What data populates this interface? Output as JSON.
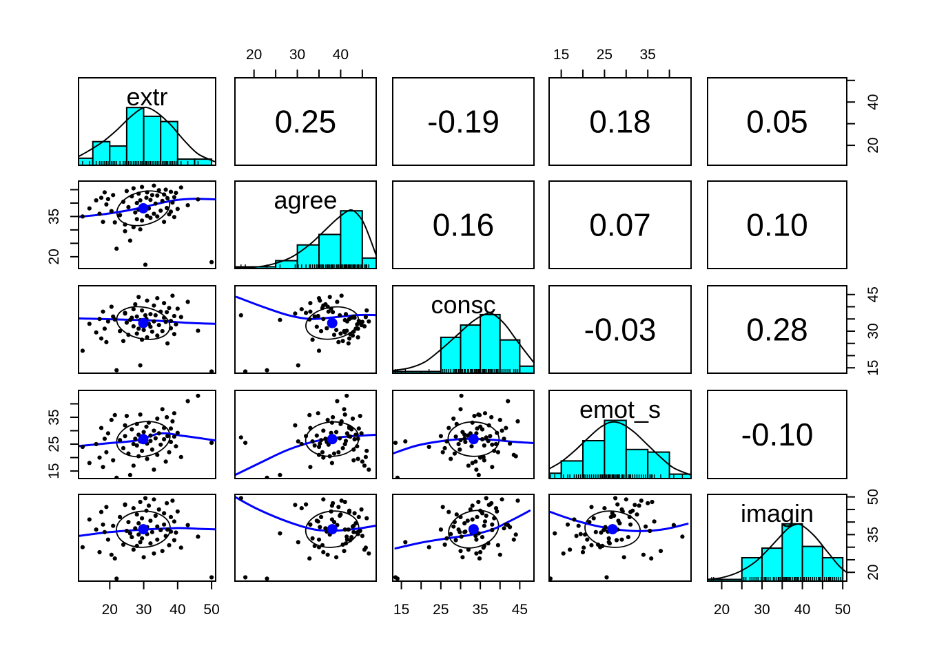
{
  "chart_data": {
    "type": "scatterplot-matrix",
    "title": "",
    "colors": {
      "hist_fill": "#00FFFF",
      "loess_line": "#0000FF",
      "center_dot": "#0000FF",
      "points": "#000000",
      "panel_border": "#000000",
      "density_line": "#000000",
      "ellipse": "#000000",
      "background": "#FFFFFF"
    },
    "variables": [
      {
        "name": "extr",
        "range": [
          10.8,
          51.2
        ],
        "x_ticks": [
          20,
          30,
          40,
          50
        ],
        "x_tick_labels": [
          "20",
          "30",
          "40",
          "50"
        ],
        "y_ticks": [
          20,
          30,
          40,
          50
        ],
        "y_tick_labels": [
          "20",
          "",
          "40",
          ""
        ],
        "hist_edges": [
          10,
          15,
          20,
          25,
          30,
          35,
          40,
          45,
          50
        ],
        "hist_heights": [
          0.08,
          0.27,
          0.22,
          0.66,
          0.56,
          0.5,
          0.07,
          0.07
        ],
        "density": [
          [
            10.8,
            0.1
          ],
          [
            14,
            0.17
          ],
          [
            18,
            0.27
          ],
          [
            22,
            0.4
          ],
          [
            26,
            0.55
          ],
          [
            29,
            0.64
          ],
          [
            31,
            0.66
          ],
          [
            34,
            0.6
          ],
          [
            38,
            0.46
          ],
          [
            42,
            0.28
          ],
          [
            46,
            0.13
          ],
          [
            51,
            0.04
          ]
        ]
      },
      {
        "name": "agree",
        "range": [
          15.6,
          48.2
        ],
        "x_ticks": [
          20,
          25,
          30,
          35,
          40,
          45
        ],
        "x_tick_labels": [
          "20",
          "",
          "30",
          "",
          "40",
          ""
        ],
        "y_ticks": [
          20,
          25,
          30,
          35,
          40,
          45
        ],
        "y_tick_labels": [
          "20",
          "",
          "",
          "35",
          "",
          ""
        ],
        "hist_edges": [
          15,
          20,
          25,
          30,
          35,
          40,
          45,
          50
        ],
        "hist_heights": [
          0.02,
          0.02,
          0.09,
          0.27,
          0.39,
          0.66,
          0.12
        ],
        "density": [
          [
            15.6,
            0.01
          ],
          [
            21,
            0.02
          ],
          [
            25,
            0.06
          ],
          [
            29,
            0.14
          ],
          [
            33,
            0.28
          ],
          [
            36,
            0.42
          ],
          [
            39,
            0.56
          ],
          [
            41.5,
            0.655
          ],
          [
            43,
            0.66
          ],
          [
            45,
            0.55
          ],
          [
            46.5,
            0.38
          ],
          [
            48.2,
            0.15
          ]
        ]
      },
      {
        "name": "consc",
        "range": [
          12.8,
          48.6
        ],
        "x_ticks": [
          15,
          20,
          25,
          30,
          35,
          40,
          45
        ],
        "x_tick_labels": [
          "15",
          "",
          "25",
          "",
          "35",
          "",
          "45"
        ],
        "y_ticks": [
          15,
          20,
          25,
          30,
          35,
          40,
          45
        ],
        "y_tick_labels": [
          "15",
          "",
          "",
          "30",
          "",
          "",
          "45"
        ],
        "hist_edges": [
          10,
          15,
          20,
          25,
          30,
          35,
          40,
          45,
          50
        ],
        "hist_heights": [
          0.02,
          0.02,
          0.02,
          0.41,
          0.55,
          0.67,
          0.38,
          0.08
        ],
        "density": [
          [
            12.8,
            0.03
          ],
          [
            17,
            0.06
          ],
          [
            21,
            0.13
          ],
          [
            25,
            0.27
          ],
          [
            29,
            0.43
          ],
          [
            33,
            0.59
          ],
          [
            36,
            0.67
          ],
          [
            38,
            0.68
          ],
          [
            41,
            0.57
          ],
          [
            44,
            0.39
          ],
          [
            46.5,
            0.24
          ],
          [
            48.6,
            0.12
          ]
        ]
      },
      {
        "name": "emot_s",
        "range": [
          12.2,
          45.0
        ],
        "x_ticks": [
          15,
          20,
          25,
          30,
          35,
          40
        ],
        "x_tick_labels": [
          "15",
          "",
          "25",
          "",
          "35",
          ""
        ],
        "y_ticks": [
          15,
          20,
          25,
          30,
          35,
          40
        ],
        "y_tick_labels": [
          "15",
          "",
          "25",
          "",
          "35",
          ""
        ],
        "hist_edges": [
          10,
          15,
          20,
          25,
          30,
          35,
          40,
          45
        ],
        "hist_heights": [
          0.06,
          0.2,
          0.43,
          0.66,
          0.33,
          0.3,
          0.05
        ],
        "density": [
          [
            12.2,
            0.11
          ],
          [
            15,
            0.19
          ],
          [
            18,
            0.31
          ],
          [
            21,
            0.45
          ],
          [
            24,
            0.58
          ],
          [
            26.5,
            0.64
          ],
          [
            29,
            0.62
          ],
          [
            32,
            0.52
          ],
          [
            35,
            0.38
          ],
          [
            38,
            0.24
          ],
          [
            41,
            0.12
          ],
          [
            45,
            0.04
          ]
        ]
      },
      {
        "name": "imagin",
        "range": [
          16.5,
          51.0
        ],
        "x_ticks": [
          20,
          25,
          30,
          35,
          40,
          45,
          50
        ],
        "x_tick_labels": [
          "20",
          "",
          "30",
          "",
          "40",
          "",
          "50"
        ],
        "y_ticks": [
          20,
          25,
          30,
          35,
          40,
          45,
          50
        ],
        "y_tick_labels": [
          "20",
          "",
          "",
          "35",
          "",
          "",
          "50"
        ],
        "hist_edges": [
          15,
          20,
          25,
          30,
          35,
          40,
          45,
          50
        ],
        "hist_heights": [
          0.02,
          0.02,
          0.27,
          0.38,
          0.66,
          0.4,
          0.27
        ],
        "density": [
          [
            16.5,
            0.02
          ],
          [
            20,
            0.04
          ],
          [
            24,
            0.1
          ],
          [
            28,
            0.21
          ],
          [
            31,
            0.34
          ],
          [
            34,
            0.49
          ],
          [
            36.5,
            0.61
          ],
          [
            38.5,
            0.655
          ],
          [
            40,
            0.64
          ],
          [
            43,
            0.52
          ],
          [
            46,
            0.35
          ],
          [
            49,
            0.18
          ],
          [
            51,
            0.1
          ]
        ]
      }
    ],
    "correlation_labels": [
      [
        "",
        "0.25",
        "-0.19",
        "0.18",
        "0.05"
      ],
      [
        "",
        "",
        "0.16",
        "0.07",
        "0.10"
      ],
      [
        "",
        "",
        "",
        "-0.03",
        "0.28"
      ],
      [
        "",
        "",
        "",
        "",
        "-0.10"
      ],
      [
        "",
        "",
        "",
        "",
        ""
      ]
    ],
    "loess": {
      "r2c1": [
        [
          11,
          34.9
        ],
        [
          18,
          35.8
        ],
        [
          25,
          37.2
        ],
        [
          30,
          38.5
        ],
        [
          35,
          40.0
        ],
        [
          40,
          41.2
        ],
        [
          45,
          41.6
        ],
        [
          51,
          41.4
        ]
      ],
      "r3c1": [
        [
          11,
          35.2
        ],
        [
          20,
          34.9
        ],
        [
          28,
          34.6
        ],
        [
          35,
          34.2
        ],
        [
          43,
          33.4
        ],
        [
          51,
          33.0
        ]
      ],
      "r4c1": [
        [
          11,
          24.3
        ],
        [
          20,
          25.4
        ],
        [
          28,
          26.4
        ],
        [
          35,
          29.0
        ],
        [
          42,
          28.0
        ],
        [
          51,
          26.4
        ]
      ],
      "r5c1": [
        [
          11,
          34.5
        ],
        [
          20,
          36.0
        ],
        [
          30,
          37.0
        ],
        [
          40,
          37.6
        ],
        [
          46,
          37.3
        ],
        [
          51,
          37.1
        ]
      ],
      "r3c2": [
        [
          16,
          44.0
        ],
        [
          22,
          40.0
        ],
        [
          28,
          36.5
        ],
        [
          33,
          35.0
        ],
        [
          38,
          35.6
        ],
        [
          44,
          36.6
        ],
        [
          48.2,
          36.6
        ]
      ],
      "r4c2": [
        [
          15.6,
          13.5
        ],
        [
          22,
          18.5
        ],
        [
          28,
          23.0
        ],
        [
          34,
          26.0
        ],
        [
          40,
          27.6
        ],
        [
          45,
          28.2
        ],
        [
          48.2,
          28.5
        ]
      ],
      "r5c2": [
        [
          15.6,
          50.0
        ],
        [
          21,
          45.0
        ],
        [
          28,
          40.0
        ],
        [
          34,
          37.0
        ],
        [
          39,
          36.6
        ],
        [
          44,
          37.4
        ],
        [
          48.2,
          38.6
        ]
      ],
      "r4c3": [
        [
          12.8,
          21.5
        ],
        [
          19,
          24.5
        ],
        [
          26,
          26.3
        ],
        [
          32,
          27.0
        ],
        [
          38,
          26.6
        ],
        [
          44,
          25.8
        ],
        [
          48.6,
          25.4
        ]
      ],
      "r5c3": [
        [
          13.5,
          29.5
        ],
        [
          20,
          31.8
        ],
        [
          27,
          33.6
        ],
        [
          33,
          35.0
        ],
        [
          38,
          37.0
        ],
        [
          42,
          40.0
        ],
        [
          45.5,
          42.8
        ],
        [
          47.5,
          44.5
        ]
      ],
      "r5c4": [
        [
          12.5,
          44.0
        ],
        [
          17,
          41.3
        ],
        [
          23,
          38.5
        ],
        [
          29,
          36.8
        ],
        [
          34,
          36.4
        ],
        [
          39,
          37.2
        ],
        [
          44.2,
          39.3
        ]
      ]
    },
    "observations": [
      [
        50,
        18,
        13.5,
        25.5,
        18
      ],
      [
        30.5,
        17,
        36.5,
        27.5,
        49.5
      ],
      [
        22,
        23,
        14,
        12.5,
        17.5
      ],
      [
        29,
        30.2,
        16,
        26,
        32
      ],
      [
        26,
        26,
        34.6,
        13.5,
        35.5
      ],
      [
        12,
        35,
        22,
        24,
        30
      ],
      [
        14,
        38,
        33,
        18,
        41
      ],
      [
        16,
        41,
        29.5,
        25,
        37
      ],
      [
        17,
        36,
        35,
        20,
        28
      ],
      [
        17.5,
        42,
        27,
        31,
        44
      ],
      [
        18,
        33,
        38,
        16.5,
        39
      ],
      [
        18.5,
        44,
        31,
        27,
        36
      ],
      [
        19,
        39.5,
        25.5,
        22,
        46
      ],
      [
        19.5,
        41.5,
        34,
        29,
        33
      ],
      [
        20.5,
        37,
        40,
        34,
        27
      ],
      [
        21,
        43,
        36,
        19,
        38.5
      ],
      [
        23,
        35.5,
        30,
        26.5,
        42
      ],
      [
        24,
        40.5,
        26,
        23.5,
        31
      ],
      [
        24.5,
        32,
        37.5,
        28,
        47
      ],
      [
        25,
        44.5,
        33.5,
        35.5,
        36.5
      ],
      [
        25.5,
        38.5,
        28.5,
        21.5,
        40
      ],
      [
        26.5,
        42.5,
        35.5,
        30.5,
        34
      ],
      [
        27,
        31,
        39,
        25,
        45.5
      ],
      [
        27,
        45.5,
        32,
        17,
        29
      ],
      [
        27.5,
        36.5,
        41,
        27,
        37.5
      ],
      [
        28,
        40,
        29,
        32.5,
        43
      ],
      [
        28,
        34,
        36,
        24.5,
        30.5
      ],
      [
        28.5,
        43.5,
        31,
        28.5,
        39.5
      ],
      [
        28.5,
        37.5,
        44,
        20.5,
        35
      ],
      [
        29,
        41,
        34.5,
        36,
        48
      ],
      [
        29.5,
        33.5,
        26.5,
        26,
        33.5
      ],
      [
        29.5,
        46,
        38.5,
        22.5,
        41.5
      ],
      [
        30,
        39,
        30.5,
        29.5,
        26
      ],
      [
        30.8,
        42,
        35,
        31.5,
        44.5
      ],
      [
        31,
        35.2,
        42.5,
        25.2,
        38
      ],
      [
        31,
        44,
        27.5,
        19.5,
        35.2
      ],
      [
        31.5,
        38,
        33,
        33,
        46.5
      ],
      [
        32,
        41.2,
        37,
        26.2,
        31.5
      ],
      [
        32,
        34.5,
        31.8,
        28.2,
        40.5
      ],
      [
        32.5,
        43,
        29.8,
        23,
        36
      ],
      [
        33,
        36,
        40.5,
        30,
        49
      ],
      [
        33,
        46.5,
        34,
        15.5,
        27.5
      ],
      [
        33.5,
        39.8,
        36.5,
        27.2,
        42.5
      ],
      [
        34,
        42.8,
        28.2,
        34.5,
        38.2
      ],
      [
        34,
        35,
        43.5,
        21,
        33
      ],
      [
        34.5,
        44.8,
        32.5,
        29,
        45
      ],
      [
        35,
        37.2,
        38,
        24.8,
        36.8
      ],
      [
        35.5,
        40.8,
        30,
        38,
        28.5
      ],
      [
        36,
        43.2,
        35.5,
        26.8,
        43.5
      ],
      [
        36,
        33,
        41.5,
        31,
        39
      ],
      [
        36.5,
        45,
        33.8,
        18.5,
        34.5
      ],
      [
        36.8,
        38.2,
        37.8,
        35,
        47.5
      ],
      [
        37,
        41.8,
        25,
        28,
        37
      ],
      [
        37.5,
        35.8,
        39.5,
        22,
        30.8
      ],
      [
        38,
        44.2,
        34.2,
        30.8,
        42
      ],
      [
        38,
        36.8,
        31.2,
        25.8,
        36.2
      ],
      [
        38.5,
        40.2,
        44.5,
        33.5,
        48.5
      ],
      [
        39,
        42.2,
        28.8,
        27.8,
        32.8
      ],
      [
        39,
        34.8,
        36.2,
        36.5,
        40.2
      ],
      [
        39.5,
        43.8,
        32.8,
        24.2,
        35.8
      ],
      [
        40,
        37.8,
        39.2,
        29.2,
        44.2
      ],
      [
        41,
        45.8,
        35.8,
        20.2,
        29.8
      ],
      [
        43,
        39.2,
        42,
        41,
        38.8
      ],
      [
        46,
        41.4,
        30.2,
        43,
        34.2
      ],
      [
        24.5,
        29.5,
        37.2,
        32,
        46.8
      ],
      [
        21.5,
        32.8,
        34.8,
        35.8,
        25.5
      ]
    ]
  }
}
